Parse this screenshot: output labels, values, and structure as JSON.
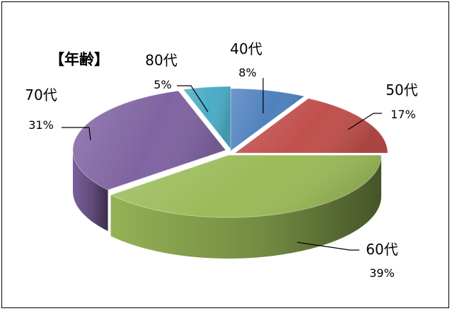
{
  "chart_data": {
    "type": "pie",
    "title": "【年齢】",
    "categories": [
      "40代",
      "50代",
      "60代",
      "70代",
      "80代"
    ],
    "values": [
      8,
      17,
      39,
      31,
      5
    ],
    "value_labels": [
      "8%",
      "17%",
      "39%",
      "31%",
      "5%"
    ],
    "colors": [
      "#4f81bd",
      "#c0504d",
      "#9bbb59",
      "#8064a2",
      "#4bacc6"
    ],
    "legend": "none",
    "style": "3d-exploded-pie"
  }
}
